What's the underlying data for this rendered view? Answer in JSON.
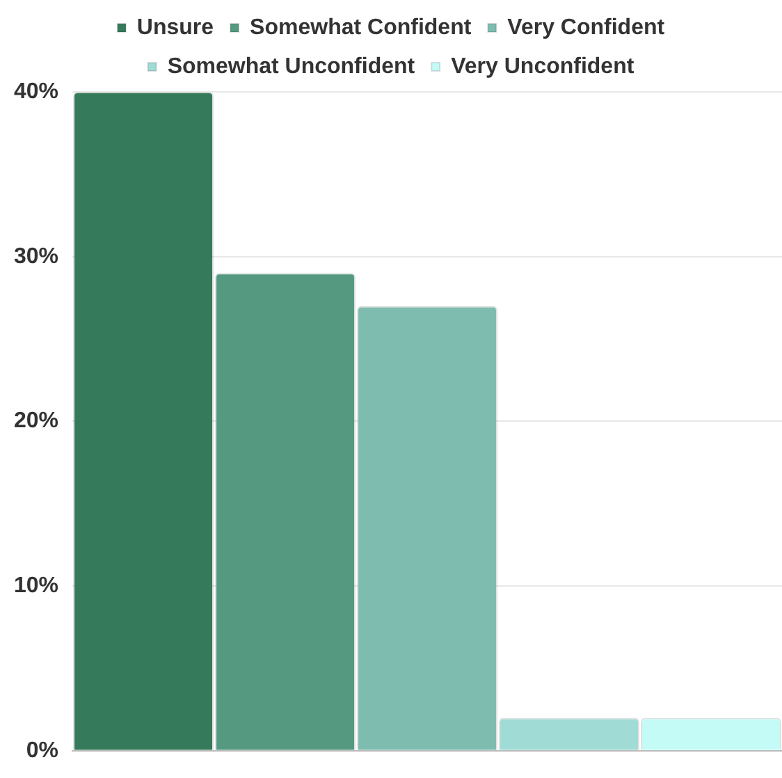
{
  "chart_data": {
    "type": "bar",
    "categories": [
      null
    ],
    "series": [
      {
        "name": "Unsure",
        "color": "#357a5a",
        "values": [
          40
        ]
      },
      {
        "name": "Somewhat Confident",
        "color": "#559a80",
        "values": [
          29
        ]
      },
      {
        "name": "Very Confident",
        "color": "#7dbcae",
        "values": [
          27
        ]
      },
      {
        "name": "Somewhat Unconfident",
        "color": "#a0dbd5",
        "values": [
          2
        ]
      },
      {
        "name": "Very Unconfident",
        "color": "#c4fbf7",
        "values": [
          2
        ]
      }
    ],
    "ylim": [
      0,
      40
    ],
    "yticks": [
      {
        "value": 0,
        "label": "0%"
      },
      {
        "value": 10,
        "label": "10%"
      },
      {
        "value": 20,
        "label": "20%"
      },
      {
        "value": 30,
        "label": "30%"
      },
      {
        "value": 40,
        "label": "40%"
      }
    ],
    "grid": "y",
    "legend": "top",
    "tick_labels": "y"
  }
}
